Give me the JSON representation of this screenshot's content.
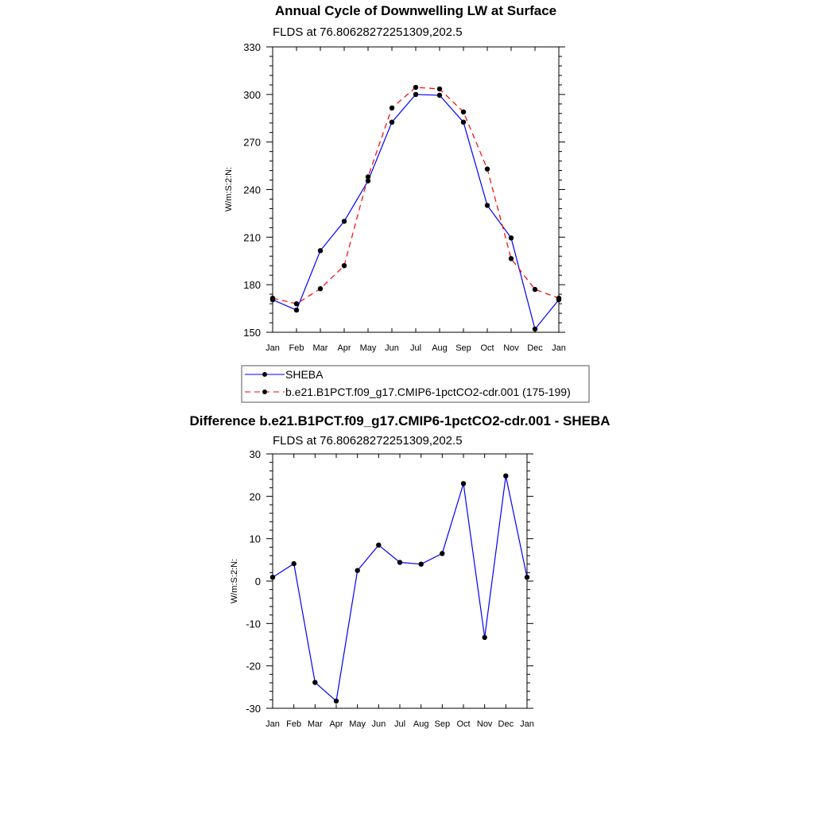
{
  "chart_data": [
    {
      "type": "line",
      "title": "Annual Cycle of Downwelling LW at Surface",
      "subtitle": "FLDS at 76.80628272251309,202.5",
      "xlabel": "",
      "ylabel": "W/m:S:2:N:",
      "categories": [
        "Jan",
        "Feb",
        "Mar",
        "Apr",
        "May",
        "Jun",
        "Jul",
        "Aug",
        "Sep",
        "Oct",
        "Nov",
        "Dec",
        "Jan"
      ],
      "ylim": [
        150,
        330
      ],
      "yticks": [
        150,
        180,
        210,
        240,
        270,
        300,
        330
      ],
      "ytick_labels": [
        "150",
        "180",
        "210",
        "240",
        "270",
        "300",
        "330"
      ],
      "series": [
        {
          "name": "SHEBA",
          "color": "#0000ff",
          "dash": "solid",
          "values": [
            170.5,
            164,
            201.5,
            220,
            245.5,
            282.5,
            300,
            299.5,
            282.5,
            230,
            209.5,
            152,
            170.5
          ]
        },
        {
          "name": "b.e21.B1PCT.f09_g17.CMIP6-1pctCO2-cdr.001 (175-199)",
          "color": "#ff0000",
          "dash": "dashed",
          "values": [
            171.5,
            168,
            177.5,
            192,
            248,
            291.5,
            304.5,
            303.5,
            289,
            253,
            196.5,
            177,
            171.5
          ]
        }
      ],
      "legend": "below"
    },
    {
      "type": "line",
      "title": "Difference b.e21.B1PCT.f09_g17.CMIP6-1pctCO2-cdr.001 - SHEBA",
      "subtitle": "FLDS at 76.80628272251309,202.5",
      "xlabel": "",
      "ylabel": "W/m:S:2:N:",
      "categories": [
        "Jan",
        "Feb",
        "Mar",
        "Apr",
        "May",
        "Jun",
        "Jul",
        "Aug",
        "Sep",
        "Oct",
        "Nov",
        "Dec",
        "Jan"
      ],
      "ylim": [
        -30,
        30
      ],
      "yticks": [
        -30,
        -20,
        -10,
        0,
        10,
        20,
        30
      ],
      "ytick_labels": [
        "-30",
        "-20",
        "-10",
        "0",
        "10",
        "20",
        "30"
      ],
      "series": [
        {
          "color": "#0000ff",
          "dash": "solid",
          "values": [
            0.9,
            4.1,
            -23.9,
            -28.3,
            2.5,
            8.5,
            4.4,
            4.0,
            6.5,
            23.0,
            -13.3,
            24.8,
            0.9
          ]
        }
      ]
    }
  ]
}
